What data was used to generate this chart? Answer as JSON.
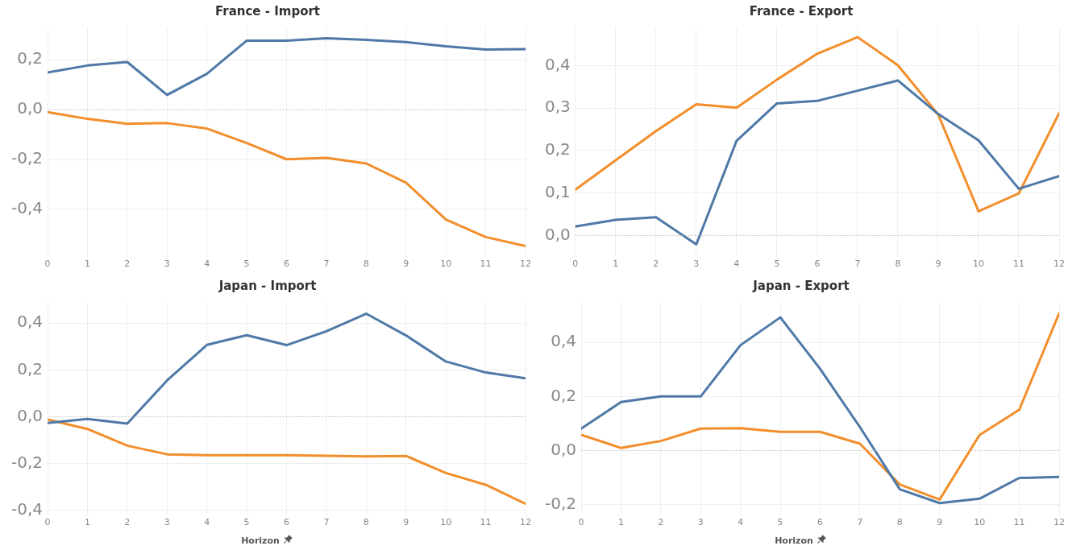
{
  "chart_data": [
    {
      "type": "line",
      "title": "France - Import",
      "x": [
        0,
        1,
        2,
        3,
        4,
        5,
        6,
        7,
        8,
        9,
        10,
        11,
        12
      ],
      "series": [
        {
          "color": "#4e79a7",
          "values": [
            0.149,
            0.177,
            0.191,
            0.059,
            0.144,
            0.277,
            0.277,
            0.286,
            0.28,
            0.271,
            0.254,
            0.241,
            0.243
          ]
        },
        {
          "color": "#f28e2b",
          "values": [
            -0.01,
            -0.037,
            -0.057,
            -0.054,
            -0.076,
            -0.134,
            -0.199,
            -0.193,
            -0.216,
            -0.293,
            -0.441,
            -0.511,
            -0.547
          ]
        }
      ],
      "xlim": [
        0,
        12
      ],
      "ylim": [
        -0.59,
        0.33
      ],
      "xticks": [
        0,
        1,
        2,
        3,
        4,
        5,
        6,
        7,
        8,
        9,
        10,
        11,
        12
      ],
      "yticks": [
        {
          "value": -0.4,
          "label": "-0,4"
        },
        {
          "value": -0.2,
          "label": "-0,2"
        },
        {
          "value": 0,
          "label": "0,0"
        },
        {
          "value": 0.2,
          "label": "0,2"
        }
      ],
      "grid": true,
      "ref_lines": [
        {
          "axis": "y",
          "value": 0,
          "line_style": "dotted"
        }
      ]
    },
    {
      "type": "line",
      "title": "France - Export",
      "x": [
        0,
        1,
        2,
        3,
        4,
        5,
        6,
        7,
        8,
        9,
        10,
        11,
        12
      ],
      "series": [
        {
          "color": "#4e79a7",
          "values": [
            0.021,
            0.037,
            0.043,
            -0.021,
            0.223,
            0.311,
            0.317,
            0.341,
            0.365,
            0.286,
            0.224,
            0.11,
            0.14
          ]
        },
        {
          "color": "#f28e2b",
          "values": [
            0.108,
            0.177,
            0.246,
            0.309,
            0.301,
            0.367,
            0.428,
            0.467,
            0.401,
            0.285,
            0.057,
            0.099,
            0.288
          ]
        }
      ],
      "xlim": [
        0,
        12
      ],
      "ylim": [
        -0.05,
        0.49
      ],
      "xticks": [
        0,
        1,
        2,
        3,
        4,
        5,
        6,
        7,
        8,
        9,
        10,
        11,
        12
      ],
      "yticks": [
        {
          "value": 0,
          "label": "0,0"
        },
        {
          "value": 0.1,
          "label": "0,1"
        },
        {
          "value": 0.2,
          "label": "0,2"
        },
        {
          "value": 0.3,
          "label": "0,3"
        },
        {
          "value": 0.4,
          "label": "0,4"
        }
      ],
      "grid": true,
      "ref_lines": [
        {
          "axis": "y",
          "value": 0,
          "line_style": "dotted"
        }
      ]
    },
    {
      "type": "line",
      "title": "Japan - Import",
      "xlabel": "Horizon",
      "x": [
        0,
        1,
        2,
        3,
        4,
        5,
        6,
        7,
        8,
        9,
        10,
        11,
        12
      ],
      "series": [
        {
          "color": "#4e79a7",
          "values": [
            -0.026,
            -0.009,
            -0.029,
            0.155,
            0.307,
            0.348,
            0.306,
            0.365,
            0.44,
            0.347,
            0.236,
            0.189,
            0.164
          ]
        },
        {
          "color": "#f28e2b",
          "values": [
            -0.012,
            -0.052,
            -0.123,
            -0.16,
            -0.164,
            -0.164,
            -0.164,
            -0.166,
            -0.169,
            -0.167,
            -0.24,
            -0.29,
            -0.371
          ]
        }
      ],
      "xlim": [
        0,
        12
      ],
      "ylim": [
        -0.42,
        0.49
      ],
      "xticks": [
        0,
        1,
        2,
        3,
        4,
        5,
        6,
        7,
        8,
        9,
        10,
        11,
        12
      ],
      "yticks": [
        {
          "value": -0.4,
          "label": "-0,4"
        },
        {
          "value": -0.2,
          "label": "-0,2"
        },
        {
          "value": 0,
          "label": "0,0"
        },
        {
          "value": 0.2,
          "label": "0,2"
        },
        {
          "value": 0.4,
          "label": "0,4"
        }
      ],
      "grid": true,
      "ref_lines": [
        {
          "axis": "y",
          "value": 0,
          "line_style": "dotted"
        }
      ]
    },
    {
      "type": "line",
      "title": "Japan - Export",
      "xlabel": "Horizon",
      "x": [
        0,
        1,
        2,
        3,
        4,
        5,
        6,
        7,
        8,
        9,
        10,
        11,
        12
      ],
      "series": [
        {
          "color": "#4e79a7",
          "values": [
            0.081,
            0.179,
            0.2,
            0.2,
            0.39,
            0.493,
            0.302,
            0.086,
            -0.144,
            -0.195,
            -0.179,
            -0.102,
            -0.098
          ]
        },
        {
          "color": "#f28e2b",
          "values": [
            0.058,
            0.009,
            0.035,
            0.081,
            0.082,
            0.069,
            0.069,
            0.025,
            -0.126,
            -0.182,
            0.057,
            0.151,
            0.508
          ]
        }
      ],
      "xlim": [
        0,
        12
      ],
      "ylim": [
        -0.24,
        0.55
      ],
      "xticks": [
        0,
        1,
        2,
        3,
        4,
        5,
        6,
        7,
        8,
        9,
        10,
        11,
        12
      ],
      "yticks": [
        {
          "value": -0.2,
          "label": "-0,2"
        },
        {
          "value": 0,
          "label": "0,0"
        },
        {
          "value": 0.2,
          "label": "0,2"
        },
        {
          "value": 0.4,
          "label": "0,4"
        }
      ],
      "grid": true,
      "ref_lines": [
        {
          "axis": "y",
          "value": 0,
          "line_style": "dotted"
        }
      ]
    }
  ]
}
